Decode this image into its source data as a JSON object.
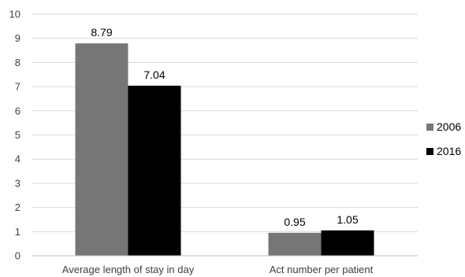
{
  "chart_data": {
    "type": "bar",
    "title": "",
    "xlabel": "",
    "ylabel": "",
    "categories": [
      "Average length of stay in day",
      "Act number per patient"
    ],
    "series": [
      {
        "name": "2006",
        "values": [
          8.79,
          0.95
        ],
        "color": "#767676"
      },
      {
        "name": "2016",
        "values": [
          7.04,
          1.05
        ],
        "color": "#000000"
      }
    ],
    "ylim": [
      0,
      10
    ],
    "yticks": [
      "0",
      "1",
      "2",
      "3",
      "4",
      "5",
      "6",
      "7",
      "8",
      "9",
      "10"
    ],
    "data_labels": [
      [
        "8.79",
        "0.95"
      ],
      [
        "7.04",
        "1.05"
      ]
    ],
    "grid": true,
    "legend_position": "right"
  }
}
